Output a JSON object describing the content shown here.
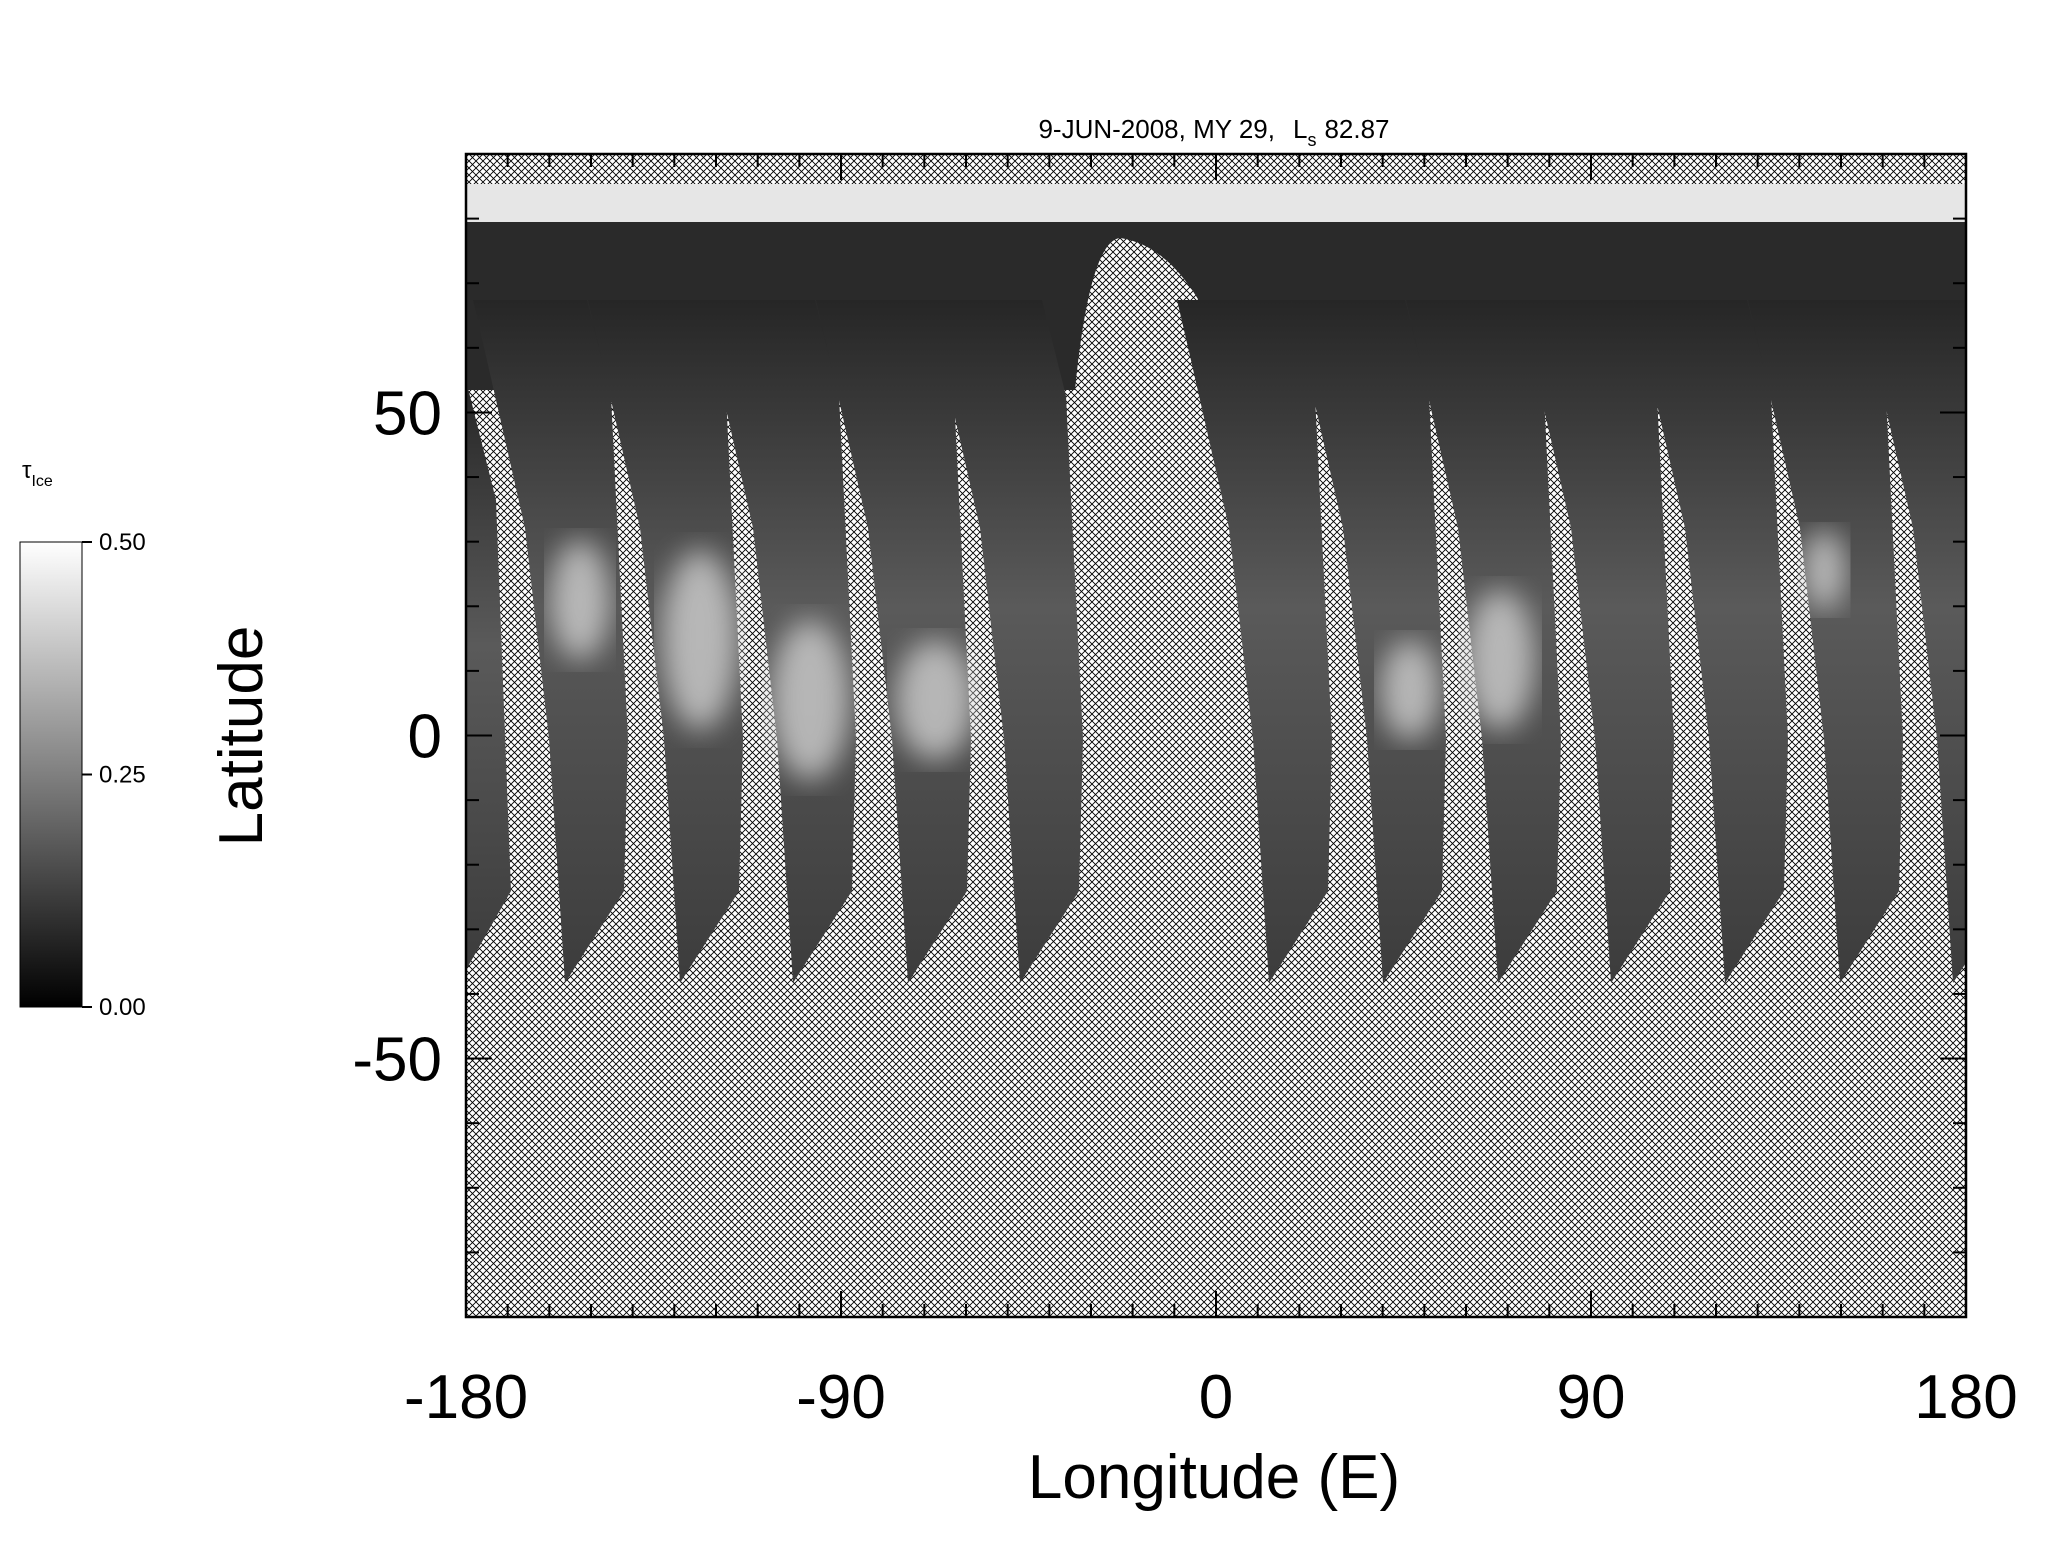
{
  "chart_data": {
    "type": "map",
    "title": {
      "text": "9-JUN-2008, MY 29,",
      "symbol": "L",
      "symbol_subscript": "s",
      "value": 82.87
    },
    "xlabel": "Longitude (E)",
    "ylabel": "Latitude",
    "xlim": [
      -180,
      180
    ],
    "xticks": [
      -180,
      -90,
      0,
      90,
      180
    ],
    "xminorticks": [
      -170,
      -160,
      -150,
      -140,
      -130,
      -120,
      -110,
      -100,
      -80,
      -70,
      -60,
      -50,
      -40,
      -30,
      -20,
      -10,
      10,
      20,
      30,
      40,
      50,
      60,
      70,
      80,
      100,
      110,
      120,
      130,
      140,
      150,
      160,
      170
    ],
    "ylim": [
      -90,
      90
    ],
    "yticks": [
      -50,
      0,
      50
    ],
    "yminorticks": [
      -80,
      -70,
      -60,
      -40,
      -30,
      -20,
      -10,
      10,
      20,
      30,
      40,
      60,
      70,
      80
    ],
    "colorbar": {
      "label": "τ",
      "label_subscript": "Ice",
      "lim": [
        0,
        0.5
      ],
      "ticks": [
        {
          "value": 0,
          "label": "0.00"
        },
        {
          "value": 0.25,
          "label": "0.25"
        },
        {
          "value": 0.5,
          "label": "0.50"
        }
      ],
      "colors": [
        "#000000",
        "#ffffff"
      ]
    }
  }
}
